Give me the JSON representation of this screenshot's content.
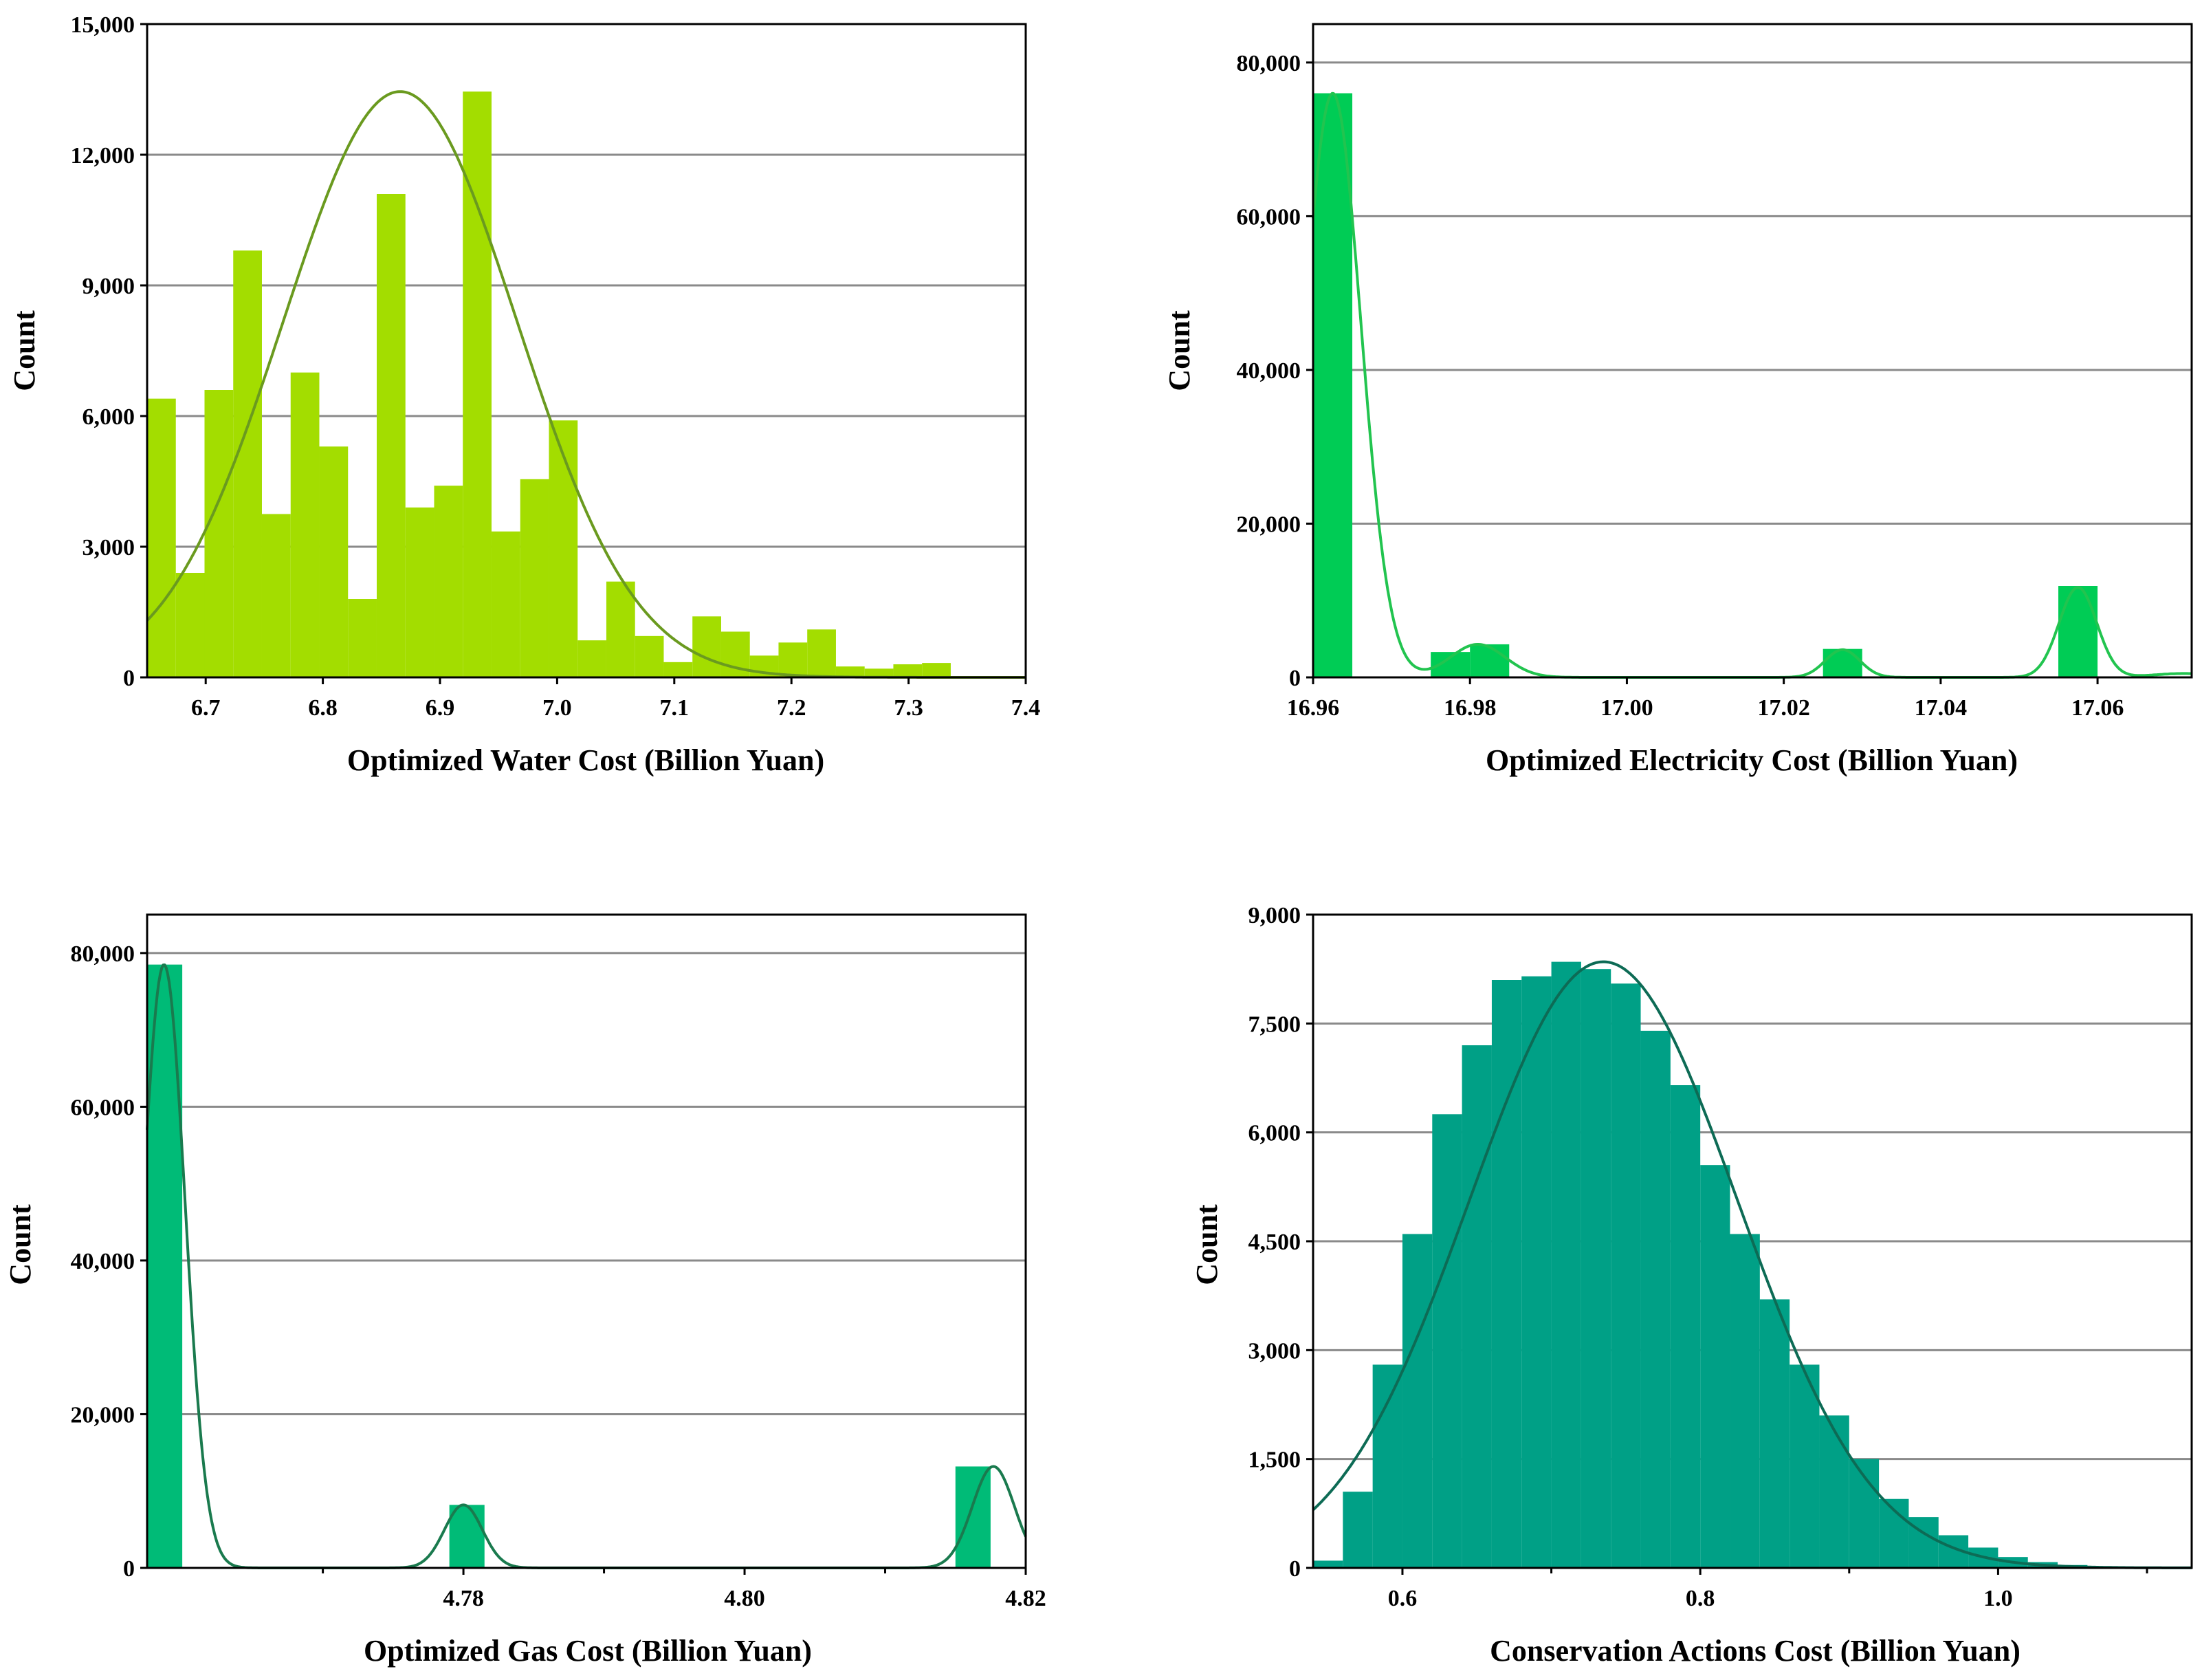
{
  "chart_data": [
    {
      "id": "water",
      "type": "bar",
      "title": "",
      "xlabel": "Optimized Water Cost (Billion Yuan)",
      "ylabel": "Count",
      "xlim": [
        6.65,
        7.4
      ],
      "ylim": [
        0,
        15000
      ],
      "xticks": [
        6.7,
        6.8,
        6.9,
        7.0,
        7.1,
        7.2,
        7.3,
        7.4
      ],
      "xtick_labels": [
        "6.7",
        "6.8",
        "6.9",
        "7.0",
        "7.1",
        "7.2",
        "7.3",
        "7.4"
      ],
      "yticks": [
        0,
        3000,
        6000,
        9000,
        12000,
        15000
      ],
      "ytick_labels": [
        "0",
        "3,000",
        "6,000",
        "9,000",
        "12,000",
        "15,000"
      ],
      "bin_width": 0.0245,
      "bins": [
        [
          6.65,
          6400
        ],
        [
          6.6745,
          2400
        ],
        [
          6.699,
          6600
        ],
        [
          6.7235,
          9800
        ],
        [
          6.748,
          3750
        ],
        [
          6.7725,
          7000
        ],
        [
          6.797,
          5300
        ],
        [
          6.8215,
          1800
        ],
        [
          6.846,
          11100
        ],
        [
          6.8705,
          3900
        ],
        [
          6.895,
          4400
        ],
        [
          6.9195,
          13450
        ],
        [
          6.944,
          3350
        ],
        [
          6.9685,
          4550
        ],
        [
          6.993,
          5900
        ],
        [
          7.0175,
          850
        ],
        [
          7.042,
          2200
        ],
        [
          7.0665,
          950
        ],
        [
          7.091,
          350
        ],
        [
          7.1155,
          1400
        ],
        [
          7.14,
          1050
        ],
        [
          7.1645,
          500
        ],
        [
          7.189,
          800
        ],
        [
          7.2135,
          1100
        ],
        [
          7.238,
          250
        ],
        [
          7.2625,
          200
        ],
        [
          7.287,
          300
        ],
        [
          7.3115,
          330
        ]
      ],
      "curve": {
        "kind": "normal",
        "mean": 6.866,
        "sd": 0.1,
        "peak": 13450
      },
      "colors": {
        "bar": "#a3dd00",
        "curve": "#6a9a1f"
      }
    },
    {
      "id": "electricity",
      "type": "bar",
      "title": "",
      "xlabel": "Optimized Electricity Cost (Billion Yuan)",
      "ylabel": "Count",
      "xlim": [
        16.96,
        17.072
      ],
      "ylim": [
        0,
        85000
      ],
      "xticks": [
        16.96,
        16.98,
        17.0,
        17.02,
        17.04,
        17.06
      ],
      "xtick_labels": [
        "16.96",
        "16.98",
        "17.00",
        "17.02",
        "17.04",
        "17.06"
      ],
      "yticks": [
        0,
        20000,
        40000,
        60000,
        80000
      ],
      "ytick_labels": [
        "0",
        "20,000",
        "40,000",
        "60,000",
        "80,000"
      ],
      "bin_width": 0.005,
      "bins": [
        [
          16.96,
          76000
        ],
        [
          16.975,
          3300
        ],
        [
          16.98,
          4300
        ],
        [
          17.025,
          3700
        ],
        [
          17.055,
          11900
        ]
      ],
      "curve": {
        "kind": "mixture",
        "components": [
          {
            "mean": 16.9625,
            "sd": 0.0036,
            "peak": 76000
          },
          {
            "mean": 16.981,
            "sd": 0.0035,
            "peak": 4300
          },
          {
            "mean": 17.0275,
            "sd": 0.0022,
            "peak": 3600
          },
          {
            "mean": 17.0575,
            "sd": 0.0024,
            "peak": 11700
          },
          {
            "mean": 17.071,
            "sd": 0.004,
            "peak": 500
          }
        ]
      },
      "colors": {
        "bar": "#00cc55",
        "curve": "#22c44f"
      }
    },
    {
      "id": "gas",
      "type": "bar",
      "title": "",
      "xlabel": "Optimized Gas Cost (Billion Yuan)",
      "ylabel": "Count",
      "xlim": [
        4.7575,
        4.82
      ],
      "ylim": [
        0,
        85000
      ],
      "xticks": [
        4.78,
        4.8,
        4.82
      ],
      "xtick_labels": [
        "4.78",
        "4.80",
        "4.82"
      ],
      "minor_xticks": [
        4.77,
        4.79,
        4.81
      ],
      "yticks": [
        0,
        20000,
        40000,
        60000,
        80000
      ],
      "ytick_labels": [
        "0",
        "20,000",
        "40,000",
        "60,000",
        "80,000"
      ],
      "bin_width": 0.0025,
      "bins": [
        [
          4.7575,
          78500
        ],
        [
          4.779,
          8200
        ],
        [
          4.815,
          13200
        ]
      ],
      "curve": {
        "kind": "mixture",
        "components": [
          {
            "mean": 4.7587,
            "sd": 0.0015,
            "peak": 78500
          },
          {
            "mean": 4.78,
            "sd": 0.00135,
            "peak": 8200
          },
          {
            "mean": 4.8177,
            "sd": 0.0015,
            "peak": 13200
          }
        ]
      },
      "colors": {
        "bar": "#00bb77",
        "curve": "#1a7a4e"
      }
    },
    {
      "id": "conservation",
      "type": "bar",
      "title": "",
      "xlabel": "Conservation Actions Cost (Billion Yuan)",
      "ylabel": "Count",
      "xlim": [
        0.54,
        1.13
      ],
      "ylim": [
        0,
        9000
      ],
      "xticks": [
        0.6,
        0.8,
        1.0
      ],
      "xtick_labels": [
        "0.6",
        "0.8",
        "1.0"
      ],
      "minor_xticks": [
        0.7,
        0.9,
        1.1
      ],
      "yticks": [
        0,
        1500,
        3000,
        4500,
        6000,
        7500,
        9000
      ],
      "ytick_labels": [
        "0",
        "1,500",
        "3,000",
        "4,500",
        "6,000",
        "7,500",
        "9,000"
      ],
      "bin_width": 0.02,
      "bins": [
        [
          0.54,
          100
        ],
        [
          0.56,
          1050
        ],
        [
          0.58,
          2800
        ],
        [
          0.6,
          4600
        ],
        [
          0.62,
          6250
        ],
        [
          0.64,
          7200
        ],
        [
          0.66,
          8100
        ],
        [
          0.68,
          8150
        ],
        [
          0.7,
          8350
        ],
        [
          0.72,
          8250
        ],
        [
          0.74,
          8050
        ],
        [
          0.76,
          7400
        ],
        [
          0.78,
          6650
        ],
        [
          0.8,
          5550
        ],
        [
          0.82,
          4600
        ],
        [
          0.84,
          3700
        ],
        [
          0.86,
          2800
        ],
        [
          0.88,
          2100
        ],
        [
          0.9,
          1500
        ],
        [
          0.92,
          950
        ],
        [
          0.94,
          700
        ],
        [
          0.96,
          450
        ],
        [
          0.98,
          280
        ],
        [
          1.0,
          150
        ],
        [
          1.02,
          80
        ],
        [
          1.04,
          40
        ],
        [
          1.06,
          20
        ]
      ],
      "curve": {
        "kind": "normal",
        "mean": 0.735,
        "sd": 0.09,
        "peak": 8350
      },
      "colors": {
        "bar": "#00a086",
        "curve": "#0d6b55"
      }
    }
  ]
}
